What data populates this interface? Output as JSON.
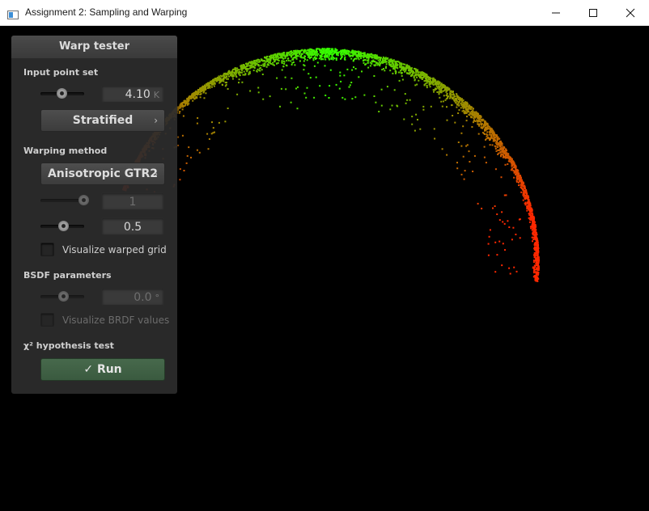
{
  "window": {
    "title": "Assignment 2: Sampling and Warping",
    "controls": [
      "minimize-icon",
      "maximize-icon",
      "close-icon"
    ]
  },
  "panel": {
    "title": "Warp tester",
    "input_point_set": {
      "label": "Input point set",
      "count_value": "4.10",
      "count_unit": "K",
      "slider_fraction": 0.45,
      "method_button": "Stratified",
      "chevron": "›"
    },
    "warping": {
      "label": "Warping method",
      "method_button": "Anisotropic GTR2",
      "chevron": "›",
      "param1_value": "1",
      "param1_slider_fraction": 0.98,
      "param2_value": "0.5",
      "param2_slider_fraction": 0.5,
      "visualize_grid_label": "Visualize warped grid"
    },
    "bsdf": {
      "label": "BSDF parameters",
      "value": "0.0",
      "unit": "°",
      "slider_fraction": 0.5,
      "visualize_brdf_label": "Visualize BRDF values"
    },
    "hypothesis": {
      "label": "χ² hypothesis test",
      "run_label": "Run",
      "check_glyph": "✓"
    }
  },
  "colors": {
    "titlebar_bg": "#ffffff",
    "canvas_bg": "#000000",
    "panel_bg": "#2c2c2c",
    "run_button": "#3f6143",
    "point_near": "#33ff00",
    "point_far": "#ff2200"
  }
}
